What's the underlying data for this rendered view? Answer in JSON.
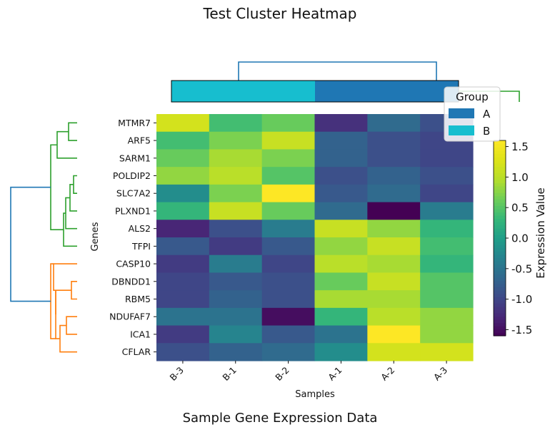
{
  "chart_data": {
    "type": "heatmap",
    "title": "Test Cluster Heatmap",
    "subtitle": "Sample Gene Expression Data",
    "xlabel": "Samples",
    "ylabel": "Genes",
    "columns": [
      "B-3",
      "B-1",
      "B-2",
      "A-1",
      "A-2",
      "A-3"
    ],
    "column_groups": [
      "B",
      "B",
      "B",
      "A",
      "A",
      "A"
    ],
    "rows": [
      "MTMR7",
      "ARF5",
      "SARM1",
      "POLDIP2",
      "SLC7A2",
      "PLXND1",
      "ALS2",
      "TFPI",
      "CASP10",
      "DBNDD1",
      "RBM5",
      "NDUFAF7",
      "ICA1",
      "CFLAR"
    ],
    "values": [
      [
        1.2,
        0.4,
        0.6,
        -1.2,
        -0.6,
        -0.9
      ],
      [
        0.4,
        0.7,
        1.1,
        -0.7,
        -0.9,
        -1.0
      ],
      [
        0.6,
        0.9,
        0.7,
        -0.7,
        -0.9,
        -1.0
      ],
      [
        0.8,
        1.0,
        0.5,
        -0.9,
        -0.7,
        -0.9
      ],
      [
        -0.2,
        0.7,
        1.6,
        -0.8,
        -0.6,
        -1.0
      ],
      [
        0.3,
        1.1,
        0.6,
        -0.6,
        -1.6,
        -0.4
      ],
      [
        -1.3,
        -0.9,
        -0.4,
        1.1,
        0.8,
        0.3
      ],
      [
        -0.8,
        -1.1,
        -0.8,
        0.8,
        1.1,
        0.4
      ],
      [
        -1.1,
        -0.4,
        -1.0,
        1.0,
        0.9,
        0.3
      ],
      [
        -1.0,
        -0.8,
        -0.9,
        0.6,
        1.1,
        0.5
      ],
      [
        -1.0,
        -0.7,
        -0.9,
        0.9,
        0.9,
        0.5
      ],
      [
        -0.5,
        -0.5,
        -1.5,
        0.3,
        1.0,
        0.8
      ],
      [
        -1.1,
        -0.3,
        -0.8,
        -0.5,
        1.6,
        0.8
      ],
      [
        -0.9,
        -0.7,
        -0.6,
        -0.2,
        1.2,
        1.2
      ]
    ],
    "colorbar": {
      "label": "Expression Value",
      "range": [
        -1.6,
        1.6
      ],
      "ticks": [
        -1.5,
        -1.0,
        -0.5,
        0.0,
        0.5,
        1.0,
        1.5
      ],
      "tick_labels": [
        "-1.5",
        "-1.0",
        "-0.5",
        "0.0",
        "0.5",
        "1.0",
        "1.5"
      ],
      "colormap": "viridis"
    },
    "legend": {
      "title": "Group",
      "placement": "top-right",
      "entries": [
        {
          "label": "A",
          "color": "#1f77b4"
        },
        {
          "label": "B",
          "color": "#17becf"
        }
      ]
    },
    "row_dendrogram_colors": {
      "cluster1": "#2ca02c",
      "cluster2": "#ff7f0e",
      "root": "#1f77b4"
    },
    "col_dendrogram_colors": {
      "root": "#1f77b4",
      "branch": "#2ca02c"
    }
  }
}
